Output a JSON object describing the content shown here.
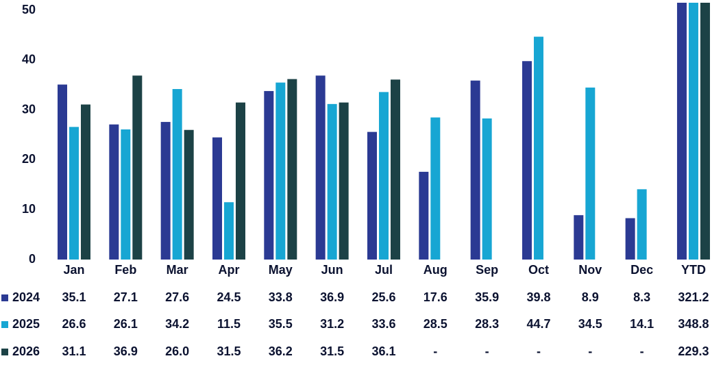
{
  "chart_data": {
    "type": "bar",
    "categories": [
      "Jan",
      "Feb",
      "Mar",
      "Apr",
      "May",
      "Jun",
      "Jul",
      "Aug",
      "Sep",
      "Oct",
      "Nov",
      "Dec",
      "YTD"
    ],
    "series": [
      {
        "name": "2024",
        "color": "#2b3a93",
        "values": [
          35.1,
          27.1,
          27.6,
          24.5,
          33.8,
          36.9,
          25.6,
          17.6,
          35.9,
          39.8,
          8.9,
          8.3,
          321.2
        ],
        "value_labels": [
          "35.1",
          "27.1",
          "27.6",
          "24.5",
          "33.8",
          "36.9",
          "25.6",
          "17.6",
          "35.9",
          "39.8",
          "8.9",
          "8.3",
          "321.2"
        ]
      },
      {
        "name": "2025",
        "color": "#17a6d3",
        "values": [
          26.6,
          26.1,
          34.2,
          11.5,
          35.5,
          31.2,
          33.6,
          28.5,
          28.3,
          44.7,
          34.5,
          14.1,
          348.8
        ],
        "value_labels": [
          "26.6",
          "26.1",
          "34.2",
          "11.5",
          "35.5",
          "31.2",
          "33.6",
          "28.5",
          "28.3",
          "44.7",
          "34.5",
          "14.1",
          "348.8"
        ]
      },
      {
        "name": "2026",
        "color": "#1c4246",
        "values": [
          31.1,
          36.9,
          26.0,
          31.5,
          36.2,
          31.5,
          36.1,
          null,
          null,
          null,
          null,
          null,
          229.3
        ],
        "value_labels": [
          "31.1",
          "36.9",
          "26.0",
          "31.5",
          "36.2",
          "31.5",
          "36.1",
          "-",
          "-",
          "-",
          "-",
          "-",
          "229.3"
        ]
      }
    ],
    "ylim": [
      0,
      50
    ],
    "yticks": [
      0,
      10,
      20,
      30,
      40,
      50
    ],
    "grid": false
  }
}
